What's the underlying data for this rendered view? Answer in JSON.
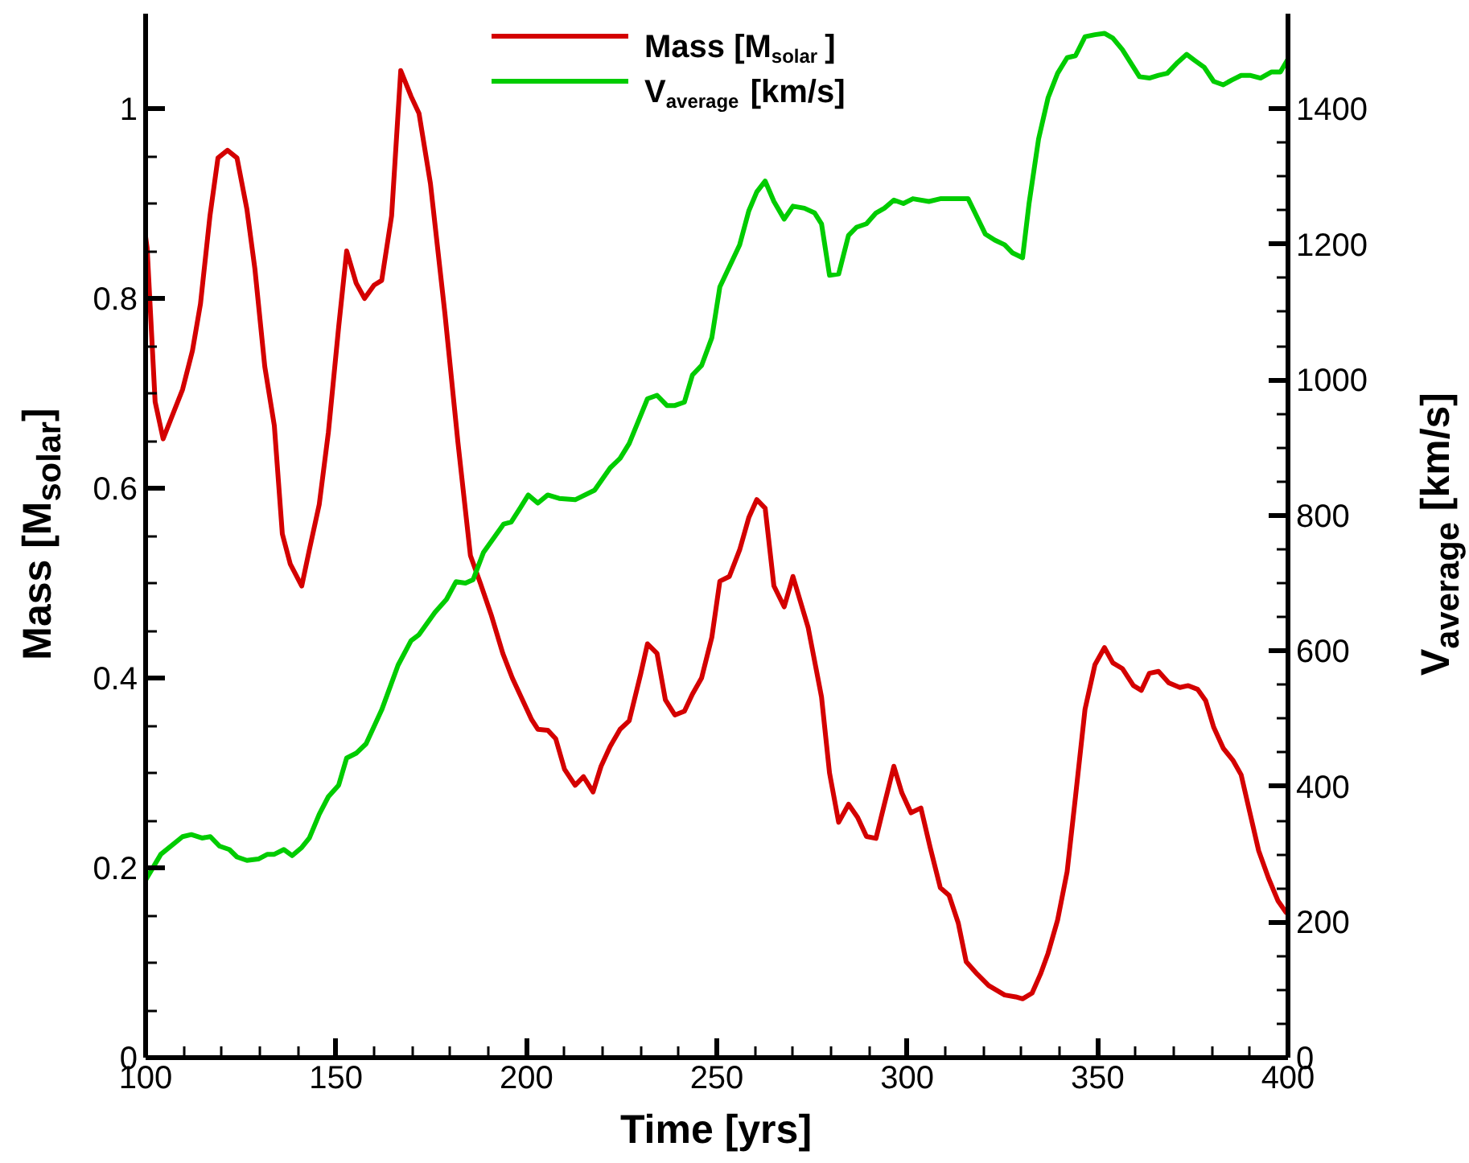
{
  "chart_data": {
    "type": "line",
    "xlabel": "Time [yrs]",
    "ylabel": "Mass [M$_{solar}$]",
    "y2label": "V$_{average}$ [km/s]",
    "xlim": [
      100,
      400
    ],
    "xticks": [
      100,
      150,
      200,
      250,
      300,
      350,
      400
    ],
    "ylim": [
      0,
      1.1
    ],
    "yticks": [
      0,
      0.2,
      0.4,
      0.6,
      0.8,
      1
    ],
    "y2lim": [
      0,
      1540
    ],
    "y2ticks": [
      0,
      200,
      400,
      600,
      800,
      1000,
      1200,
      1400
    ],
    "grid": false,
    "legend": "top",
    "marker": "none",
    "line_style": "solid",
    "series": [
      {
        "name": "Mass [M$_{solar}$]",
        "color": "#d40000",
        "x": [
          100,
          100.4,
          102.5,
          104.6,
          109.7,
          112.3,
          114.4,
          116.9,
          119,
          121.5,
          124,
          126.6,
          128.7,
          131.3,
          133.8,
          135.9,
          138,
          141,
          143,
          145.6,
          148,
          150.7,
          152.8,
          155.3,
          157.5,
          160,
          162,
          164.6,
          167,
          169.7,
          171.8,
          174.8,
          178.6,
          182,
          185.3,
          187.9,
          190.8,
          193.8,
          196.3,
          201.4,
          203,
          205.6,
          207.7,
          210,
          212.8,
          215,
          217.5,
          219.6,
          222,
          224.6,
          227,
          230,
          231.8,
          234.3,
          236.5,
          239,
          241.5,
          243.6,
          246,
          248.7,
          250.8,
          253.3,
          256,
          258.4,
          260.5,
          262.7,
          265,
          267.7,
          270,
          274,
          277.5,
          279.6,
          282,
          284.6,
          287,
          289.3,
          291.8,
          294,
          296.5,
          298.6,
          301,
          303.6,
          306,
          308.7,
          311,
          313.4,
          315.5,
          318.4,
          321.4,
          325.6,
          328.5,
          330.3,
          332.8,
          335,
          337,
          339.5,
          342,
          344.2,
          346.7,
          349.3,
          351.8,
          354,
          356.5,
          359.4,
          361.5,
          363.6,
          366,
          368.7,
          371.6,
          373.8,
          376.3,
          378.4,
          380.5,
          383,
          385.6,
          387.7,
          390,
          392.3,
          394.9,
          397.4,
          399.5,
          400
        ],
        "values": [
          0.865,
          0.853,
          0.691,
          0.652,
          0.704,
          0.745,
          0.794,
          0.887,
          0.948,
          0.956,
          0.948,
          0.894,
          0.831,
          0.728,
          0.666,
          0.552,
          0.52,
          0.497,
          0.535,
          0.583,
          0.659,
          0.77,
          0.85,
          0.816,
          0.8,
          0.814,
          0.819,
          0.887,
          1.04,
          1.013,
          0.995,
          0.921,
          0.784,
          0.649,
          0.529,
          0.5,
          0.466,
          0.426,
          0.4,
          0.356,
          0.346,
          0.345,
          0.336,
          0.304,
          0.287,
          0.296,
          0.28,
          0.307,
          0.328,
          0.346,
          0.355,
          0.404,
          0.436,
          0.426,
          0.377,
          0.361,
          0.365,
          0.383,
          0.4,
          0.443,
          0.502,
          0.507,
          0.535,
          0.569,
          0.588,
          0.579,
          0.497,
          0.475,
          0.507,
          0.453,
          0.38,
          0.3,
          0.248,
          0.267,
          0.253,
          0.233,
          0.231,
          0.267,
          0.307,
          0.279,
          0.258,
          0.263,
          0.222,
          0.179,
          0.171,
          0.142,
          0.101,
          0.088,
          0.076,
          0.066,
          0.064,
          0.062,
          0.068,
          0.088,
          0.11,
          0.145,
          0.196,
          0.275,
          0.367,
          0.414,
          0.432,
          0.416,
          0.41,
          0.392,
          0.387,
          0.405,
          0.407,
          0.395,
          0.39,
          0.392,
          0.388,
          0.376,
          0.348,
          0.326,
          0.313,
          0.298,
          0.258,
          0.218,
          0.189,
          0.165,
          0.153,
          0.155
        ]
      },
      {
        "name": "V$_{average}$ [km/s]",
        "color": "#00cc00",
        "axis": "y2",
        "x": [
          100,
          104,
          109.7,
          112,
          114.8,
          117,
          119.4,
          122,
          124,
          126.6,
          129.6,
          132,
          133.8,
          136.3,
          138.5,
          141,
          143,
          145.6,
          148,
          150.7,
          152.8,
          155.3,
          157.9,
          162,
          166.3,
          169.7,
          171.8,
          176,
          179,
          181.5,
          184,
          186,
          188.7,
          194,
          196,
          198.4,
          200.5,
          203,
          205.6,
          208.6,
          212.8,
          217.9,
          222,
          224.6,
          227,
          231.8,
          234.3,
          236.9,
          239,
          241.5,
          243.6,
          246,
          248.7,
          250.8,
          256,
          258.4,
          260.5,
          262.7,
          265,
          267.7,
          270,
          273,
          275.7,
          277.5,
          279.6,
          282,
          284.6,
          286.7,
          289.3,
          291.8,
          294,
          296.5,
          299,
          301.5,
          305.7,
          308.7,
          316,
          318,
          320.5,
          323,
          325.6,
          327.7,
          330.3,
          332,
          334.5,
          337,
          339.5,
          342,
          344.2,
          346.7,
          349.3,
          351.8,
          354,
          356.5,
          361,
          363.6,
          366,
          368.3,
          371,
          373.4,
          375.5,
          378,
          380.5,
          383,
          385.2,
          387.7,
          390,
          392.8,
          395.7,
          398,
          400
        ],
        "values": [
          262,
          300,
          326,
          329,
          324,
          326,
          312,
          307,
          296,
          291,
          293,
          300,
          300,
          307,
          298,
          310,
          324,
          359,
          385,
          402,
          442,
          449,
          463,
          513,
          579,
          615,
          624,
          657,
          676,
          702,
          700,
          705,
          745,
          787,
          790,
          811,
          830,
          818,
          830,
          825,
          823,
          837,
          870,
          884,
          906,
          972,
          977,
          962,
          962,
          967,
          1007,
          1021,
          1062,
          1137,
          1199,
          1249,
          1277,
          1293,
          1263,
          1237,
          1256,
          1253,
          1246,
          1230,
          1154,
          1156,
          1213,
          1225,
          1230,
          1246,
          1253,
          1265,
          1260,
          1267,
          1263,
          1267,
          1267,
          1244,
          1215,
          1206,
          1199,
          1187,
          1180,
          1260,
          1355,
          1416,
          1452,
          1475,
          1478,
          1506,
          1509,
          1511,
          1504,
          1487,
          1447,
          1445,
          1449,
          1452,
          1468,
          1480,
          1471,
          1461,
          1440,
          1435,
          1442,
          1449,
          1449,
          1445,
          1454,
          1454,
          1473
        ]
      }
    ]
  }
}
